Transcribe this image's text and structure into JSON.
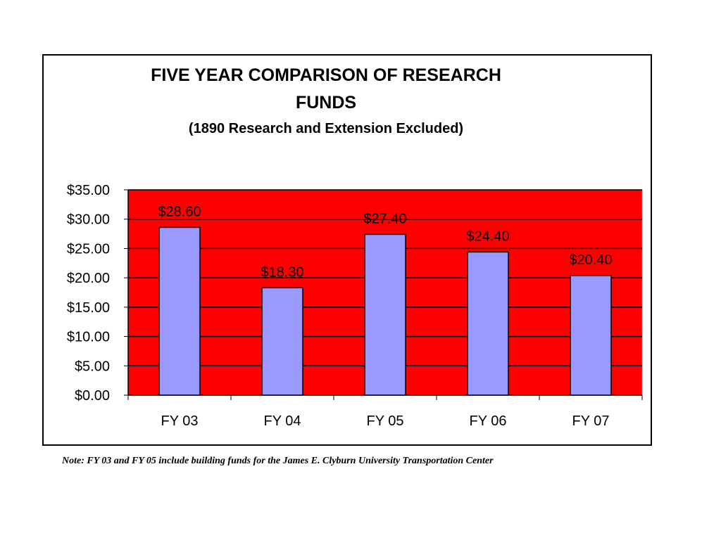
{
  "chart_data": {
    "type": "bar",
    "title_line1": "FIVE YEAR COMPARISON OF RESEARCH",
    "title_line2": "FUNDS",
    "subtitle": "(1890 Research and Extension Excluded)",
    "categories": [
      "FY 03",
      "FY 04",
      "FY 05",
      "FY 06",
      "FY 07"
    ],
    "values": [
      28.6,
      18.3,
      27.4,
      24.4,
      20.4
    ],
    "data_labels": [
      "$28.60",
      "$18.30",
      "$27.40",
      "$24.40",
      "$20.40"
    ],
    "y_ticks": [
      0,
      5,
      10,
      15,
      20,
      25,
      30,
      35
    ],
    "y_tick_labels": [
      "$0.00",
      "$5.00",
      "$10.00",
      "$15.00",
      "$20.00",
      "$25.00",
      "$30.00",
      "$35.00"
    ],
    "ylim": [
      0,
      35
    ],
    "xlabel": "",
    "ylabel": "",
    "grid": true,
    "legend": "none",
    "colors": {
      "plot_background": "#ff0000",
      "bar_fill": "#9999ff",
      "bar_stroke": "#000000",
      "gridline": "#000000"
    }
  },
  "note": "Note:  FY 03 and FY 05 include building funds for the James E. Clyburn University Transportation Center"
}
